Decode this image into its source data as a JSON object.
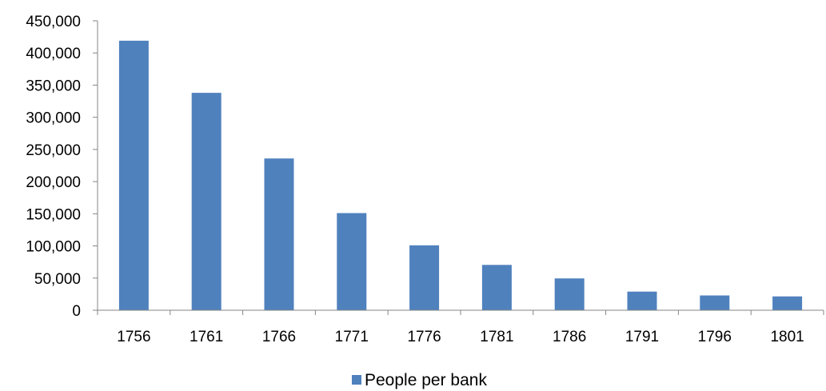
{
  "chart_data": {
    "type": "bar",
    "title": "",
    "xlabel": "",
    "ylabel": "",
    "categories": [
      "1756",
      "1761",
      "1766",
      "1771",
      "1776",
      "1781",
      "1786",
      "1791",
      "1796",
      "1801"
    ],
    "series": [
      {
        "name": "People per bank",
        "color": "#4F81BD",
        "values": [
          419000,
          338000,
          236000,
          151000,
          101000,
          70500,
          49500,
          29000,
          23000,
          21500
        ]
      }
    ],
    "ylim": [
      0,
      450000
    ],
    "y_ticks": [
      0,
      50000,
      100000,
      150000,
      200000,
      250000,
      300000,
      350000,
      400000,
      450000
    ],
    "y_tick_labels": [
      "0",
      "50,000",
      "100,000",
      "150,000",
      "200,000",
      "250,000",
      "300,000",
      "350,000",
      "400,000",
      "450,000"
    ],
    "grid": false,
    "legend_position": "bottom"
  }
}
